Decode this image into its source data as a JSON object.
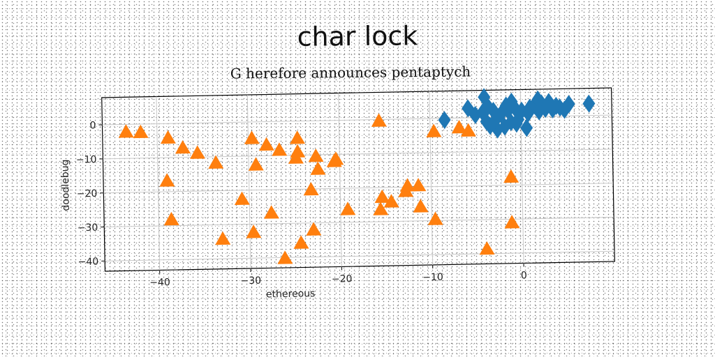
{
  "title": "char lock",
  "subtitle": "G herefore announces pentaptych",
  "chart_data": {
    "type": "scatter",
    "xlabel": "ethereous",
    "ylabel": "doodlebug",
    "xlim": [
      -46,
      10
    ],
    "ylim": [
      -43,
      8
    ],
    "xticks": [
      -40,
      -30,
      -20,
      -10,
      0
    ],
    "yticks": [
      0,
      -10,
      -20,
      -30,
      -40
    ],
    "xtick_labels": [
      "−40",
      "−30",
      "−20",
      "−10",
      "0"
    ],
    "ytick_labels": [
      "0",
      "−10",
      "−20",
      "−30",
      "−40"
    ],
    "grid": true,
    "legend": "none",
    "series": [
      {
        "marker": "diamond",
        "color": "#1f77b4",
        "points": [
          [
            -8.4,
            -0.5
          ],
          [
            -5.8,
            2.8
          ],
          [
            -5.0,
            0.8
          ],
          [
            -4.2,
            1.5
          ],
          [
            -3.8,
            -1.2
          ],
          [
            -3.4,
            -2.5
          ],
          [
            -3.0,
            1.9
          ],
          [
            -2.6,
            -3.6
          ],
          [
            -2.2,
            0.9
          ],
          [
            -1.8,
            -2.8
          ],
          [
            -1.4,
            1.9
          ],
          [
            -1.1,
            -1.5
          ],
          [
            -0.7,
            2.8
          ],
          [
            -0.3,
            -0.8
          ],
          [
            0.1,
            1.8
          ],
          [
            0.6,
            -3.3
          ],
          [
            1.0,
            2.6
          ],
          [
            1.5,
            3.3
          ],
          [
            1.9,
            5.0
          ],
          [
            2.3,
            3.8
          ],
          [
            2.7,
            2.2
          ],
          [
            3.1,
            4.2
          ],
          [
            3.5,
            2.0
          ],
          [
            3.9,
            3.0
          ],
          [
            4.3,
            2.5
          ],
          [
            4.8,
            1.8
          ],
          [
            5.3,
            3.5
          ],
          [
            7.5,
            3.5
          ],
          [
            -4.0,
            6.0
          ],
          [
            -1.0,
            4.5
          ],
          [
            -0.5,
            -2.0
          ],
          [
            -2.8,
            -0.8
          ],
          [
            -3.6,
            3.2
          ],
          [
            0.8,
            1.0
          ],
          [
            2.0,
            1.5
          ],
          [
            -1.6,
            3.4
          ]
        ]
      },
      {
        "marker": "triangle",
        "color": "#ff7f0e",
        "points": [
          [
            -43.4,
            -2.2
          ],
          [
            -41.8,
            -2.4
          ],
          [
            -38.8,
            -4.2
          ],
          [
            -37.2,
            -7.2
          ],
          [
            -35.6,
            -8.8
          ],
          [
            -33.6,
            -11.8
          ],
          [
            -39.0,
            -16.8
          ],
          [
            -38.6,
            -28.2
          ],
          [
            -33.0,
            -34.2
          ],
          [
            -30.8,
            -22.6
          ],
          [
            -29.6,
            -4.8
          ],
          [
            -29.2,
            -12.6
          ],
          [
            -29.6,
            -32.4
          ],
          [
            -28.0,
            -6.8
          ],
          [
            -27.6,
            -26.8
          ],
          [
            -26.6,
            -8.4
          ],
          [
            -24.6,
            -5.0
          ],
          [
            -24.6,
            -9.0
          ],
          [
            -24.8,
            -10.8
          ],
          [
            -26.2,
            -40.2
          ],
          [
            -24.4,
            -35.8
          ],
          [
            -22.6,
            -10.4
          ],
          [
            -22.4,
            -14.2
          ],
          [
            -23.2,
            -20.2
          ],
          [
            -23.0,
            -32.0
          ],
          [
            -20.6,
            -12.0
          ],
          [
            -20.4,
            -11.4
          ],
          [
            -19.2,
            -26.2
          ],
          [
            -15.6,
            -0.4
          ],
          [
            -15.4,
            -22.8
          ],
          [
            -15.6,
            -26.4
          ],
          [
            -14.4,
            -24.2
          ],
          [
            -12.8,
            -21.2
          ],
          [
            -12.6,
            -19.6
          ],
          [
            -11.4,
            -19.6
          ],
          [
            -11.2,
            -25.8
          ],
          [
            -9.6,
            -29.6
          ],
          [
            -9.6,
            -3.8
          ],
          [
            -6.8,
            -2.8
          ],
          [
            -5.8,
            -3.8
          ],
          [
            -1.2,
            -17.6
          ],
          [
            -1.2,
            -31.0
          ],
          [
            -4.0,
            -38.6
          ]
        ]
      }
    ]
  }
}
